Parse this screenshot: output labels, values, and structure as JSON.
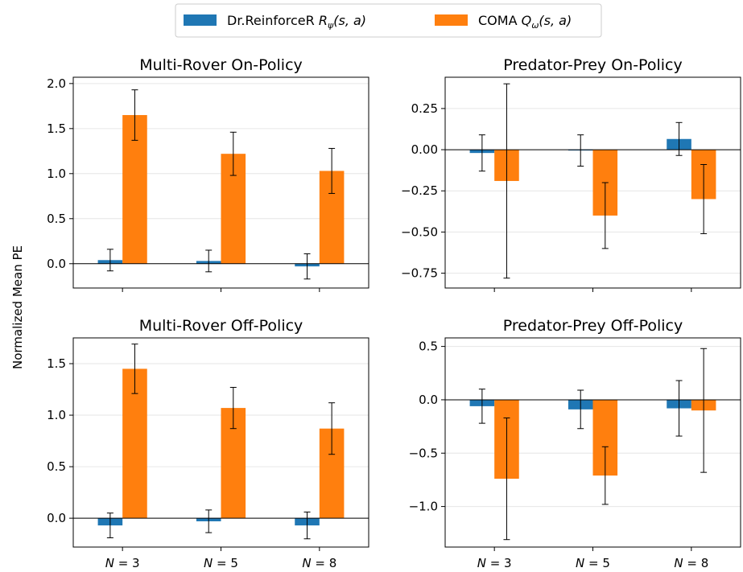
{
  "figure": {
    "ylabel": "Normalized Mean PE",
    "legend": {
      "placement": "top-center",
      "items": [
        {
          "label": "Dr.ReinforceR",
          "math": "R",
          "sub": "ψ",
          "args": "(s, a)",
          "color": "#1f77b4"
        },
        {
          "label": "COMA",
          "math": "Q",
          "sub": "ω",
          "args": "(s, a)",
          "color": "#ff7f0e"
        }
      ]
    },
    "xtick_labels": [
      "N = 3",
      "N = 5",
      "N = 8"
    ]
  },
  "chart_data": [
    {
      "type": "bar",
      "title": "Multi-Rover On-Policy",
      "categories": [
        "N = 3",
        "N = 5",
        "N = 8"
      ],
      "series": [
        {
          "name": "Dr.ReinforceR Rψ(s, a)",
          "values": [
            0.04,
            0.03,
            -0.03
          ],
          "errors": [
            0.12,
            0.12,
            0.14
          ]
        },
        {
          "name": "COMA Qω(s, a)",
          "values": [
            1.65,
            1.22,
            1.03
          ],
          "errors": [
            0.28,
            0.24,
            0.25
          ]
        }
      ],
      "ylim": [
        -0.27,
        2.07
      ],
      "yticks": [
        0.0,
        0.5,
        1.0,
        1.5,
        2.0
      ],
      "ytick_labels": [
        "0.0",
        "0.5",
        "1.0",
        "1.5",
        "2.0"
      ],
      "grid": "horizontal"
    },
    {
      "type": "bar",
      "title": "Predator-Prey On-Policy",
      "categories": [
        "N = 3",
        "N = 5",
        "N = 8"
      ],
      "series": [
        {
          "name": "Dr.ReinforceR Rψ(s, a)",
          "values": [
            -0.02,
            -0.005,
            0.065
          ],
          "errors": [
            0.11,
            0.095,
            0.1
          ]
        },
        {
          "name": "COMA Qω(s, a)",
          "values": [
            -0.19,
            -0.4,
            -0.3
          ],
          "errors": [
            0.59,
            0.2,
            0.21
          ]
        }
      ],
      "ylim": [
        -0.84,
        0.44
      ],
      "yticks": [
        -0.75,
        -0.5,
        -0.25,
        0.0,
        0.25
      ],
      "ytick_labels": [
        "−0.75",
        "−0.50",
        "−0.25",
        "0.00",
        "0.25"
      ],
      "grid": "horizontal"
    },
    {
      "type": "bar",
      "title": "Multi-Rover Off-Policy",
      "categories": [
        "N = 3",
        "N = 5",
        "N = 8"
      ],
      "series": [
        {
          "name": "Dr.ReinforceR Rψ(s, a)",
          "values": [
            -0.07,
            -0.03,
            -0.07
          ],
          "errors": [
            0.12,
            0.11,
            0.13
          ]
        },
        {
          "name": "COMA Qω(s, a)",
          "values": [
            1.45,
            1.07,
            0.87
          ],
          "errors": [
            0.24,
            0.2,
            0.25
          ]
        }
      ],
      "ylim": [
        -0.28,
        1.75
      ],
      "yticks": [
        0.0,
        0.5,
        1.0,
        1.5
      ],
      "ytick_labels": [
        "0.0",
        "0.5",
        "1.0",
        "1.5"
      ],
      "grid": "horizontal"
    },
    {
      "type": "bar",
      "title": "Predator-Prey Off-Policy",
      "categories": [
        "N = 3",
        "N = 5",
        "N = 8"
      ],
      "series": [
        {
          "name": "Dr.ReinforceR Rψ(s, a)",
          "values": [
            -0.06,
            -0.09,
            -0.08
          ],
          "errors": [
            0.16,
            0.18,
            0.26
          ]
        },
        {
          "name": "COMA Qω(s, a)",
          "values": [
            -0.74,
            -0.71,
            -0.1
          ],
          "errors": [
            0.57,
            0.27,
            0.58
          ]
        }
      ],
      "ylim": [
        -1.38,
        0.58
      ],
      "yticks": [
        -1.0,
        -0.5,
        0.0,
        0.5
      ],
      "ytick_labels": [
        "−1.0",
        "−0.5",
        "0.0",
        "0.5"
      ],
      "grid": "horizontal"
    }
  ]
}
